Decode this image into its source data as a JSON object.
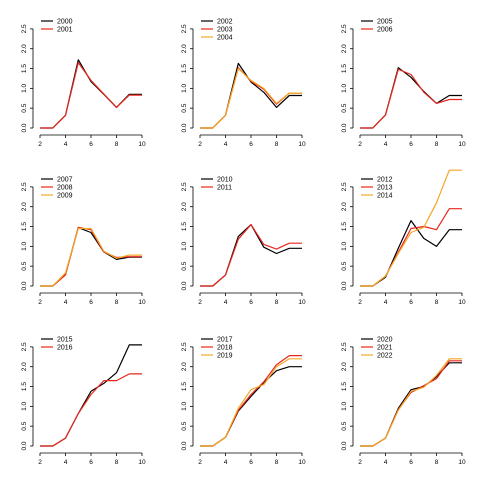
{
  "colors": {
    "black": "#000000",
    "red": "#e8281e",
    "orange": "#f5a623",
    "axis": "#000000"
  },
  "chart_data": [
    {
      "type": "line",
      "x": [
        2,
        3,
        4,
        5,
        6,
        7,
        8,
        9,
        10
      ],
      "xticks": [
        2,
        4,
        6,
        8,
        10
      ],
      "yticks": [
        "0.0",
        "0.5",
        "1.0",
        "1.5",
        "2.0",
        "2.5"
      ],
      "xlim": [
        2,
        10
      ],
      "ylim": [
        0,
        2.8
      ],
      "legend_position": "top-left",
      "series": [
        {
          "name": "2000",
          "color": "#000000",
          "values": [
            0.0,
            0.0,
            0.32,
            1.72,
            1.17,
            0.85,
            0.52,
            0.85,
            0.85
          ]
        },
        {
          "name": "2001",
          "color": "#e8281e",
          "values": [
            0.0,
            0.0,
            0.32,
            1.65,
            1.2,
            0.86,
            0.52,
            0.83,
            0.83
          ]
        }
      ]
    },
    {
      "type": "line",
      "x": [
        2,
        3,
        4,
        5,
        6,
        7,
        8,
        9,
        10
      ],
      "xticks": [
        2,
        4,
        6,
        8,
        10
      ],
      "yticks": [
        "0.0",
        "0.5",
        "1.0",
        "1.5",
        "2.0",
        "2.5"
      ],
      "xlim": [
        2,
        10
      ],
      "ylim": [
        0,
        2.8
      ],
      "legend_position": "top-left",
      "series": [
        {
          "name": "2002",
          "color": "#000000",
          "values": [
            0.0,
            0.0,
            0.32,
            1.63,
            1.16,
            0.9,
            0.52,
            0.82,
            0.82
          ]
        },
        {
          "name": "2003",
          "color": "#e8281e",
          "values": [
            0.0,
            0.0,
            0.32,
            1.52,
            1.18,
            0.98,
            0.6,
            0.88,
            0.88
          ]
        },
        {
          "name": "2004",
          "color": "#f5a623",
          "values": [
            0.0,
            0.0,
            0.32,
            1.5,
            1.2,
            1.0,
            0.62,
            0.88,
            0.88
          ]
        }
      ]
    },
    {
      "type": "line",
      "x": [
        2,
        3,
        4,
        5,
        6,
        7,
        8,
        9,
        10
      ],
      "xticks": [
        2,
        4,
        6,
        8,
        10
      ],
      "yticks": [
        "0.0",
        "0.5",
        "1.0",
        "1.5",
        "2.0",
        "2.5"
      ],
      "xlim": [
        2,
        10
      ],
      "ylim": [
        0,
        2.8
      ],
      "legend_position": "top-left",
      "series": [
        {
          "name": "2005",
          "color": "#000000",
          "values": [
            0.0,
            0.0,
            0.33,
            1.52,
            1.28,
            0.92,
            0.62,
            0.82,
            0.82
          ]
        },
        {
          "name": "2006",
          "color": "#e8281e",
          "values": [
            0.0,
            0.0,
            0.33,
            1.48,
            1.35,
            0.9,
            0.62,
            0.72,
            0.72
          ]
        }
      ]
    },
    {
      "type": "line",
      "x": [
        2,
        3,
        4,
        5,
        6,
        7,
        8,
        9,
        10
      ],
      "xticks": [
        2,
        4,
        6,
        8,
        10
      ],
      "yticks": [
        "0.0",
        "0.5",
        "1.0",
        "1.5",
        "2.0",
        "2.5"
      ],
      "xlim": [
        2,
        10
      ],
      "ylim": [
        0,
        2.8
      ],
      "legend_position": "top-left",
      "series": [
        {
          "name": "2007",
          "color": "#000000",
          "values": [
            0.0,
            0.0,
            0.3,
            1.47,
            1.35,
            0.86,
            0.67,
            0.73,
            0.73
          ]
        },
        {
          "name": "2008",
          "color": "#e8281e",
          "values": [
            0.0,
            0.0,
            0.28,
            1.48,
            1.42,
            0.86,
            0.72,
            0.74,
            0.74
          ]
        },
        {
          "name": "2009",
          "color": "#f5a623",
          "values": [
            0.0,
            0.0,
            0.33,
            1.45,
            1.45,
            0.88,
            0.7,
            0.78,
            0.78
          ]
        }
      ]
    },
    {
      "type": "line",
      "x": [
        2,
        3,
        4,
        5,
        6,
        7,
        8,
        9,
        10
      ],
      "xticks": [
        2,
        4,
        6,
        8,
        10
      ],
      "yticks": [
        "0.0",
        "0.5",
        "1.0",
        "1.5",
        "2.0",
        "2.5"
      ],
      "xlim": [
        2,
        10
      ],
      "ylim": [
        0,
        2.8
      ],
      "legend_position": "top-left",
      "series": [
        {
          "name": "2010",
          "color": "#000000",
          "values": [
            0.0,
            0.0,
            0.28,
            1.25,
            1.55,
            0.98,
            0.82,
            0.95,
            0.95
          ]
        },
        {
          "name": "2011",
          "color": "#e8281e",
          "values": [
            0.0,
            0.0,
            0.28,
            1.18,
            1.55,
            1.05,
            0.93,
            1.08,
            1.08
          ]
        }
      ]
    },
    {
      "type": "line",
      "x": [
        2,
        3,
        4,
        5,
        6,
        7,
        8,
        9,
        10
      ],
      "xticks": [
        2,
        4,
        6,
        8,
        10
      ],
      "yticks": [
        "0.0",
        "0.5",
        "1.0",
        "1.5",
        "2.0",
        "2.5"
      ],
      "xlim": [
        2,
        10
      ],
      "ylim": [
        0,
        2.8
      ],
      "legend_position": "top-left",
      "series": [
        {
          "name": "2012",
          "color": "#000000",
          "values": [
            0.0,
            0.0,
            0.22,
            0.95,
            1.65,
            1.2,
            1.0,
            1.42,
            1.42
          ]
        },
        {
          "name": "2013",
          "color": "#e8281e",
          "values": [
            0.0,
            0.0,
            0.25,
            0.85,
            1.45,
            1.5,
            1.42,
            1.95,
            1.95
          ]
        },
        {
          "name": "2014",
          "color": "#f5a623",
          "values": [
            0.0,
            0.0,
            0.25,
            0.82,
            1.35,
            1.48,
            2.1,
            2.92,
            2.92
          ]
        }
      ]
    },
    {
      "type": "line",
      "x": [
        2,
        3,
        4,
        5,
        6,
        7,
        8,
        9,
        10
      ],
      "xticks": [
        2,
        4,
        6,
        8,
        10
      ],
      "yticks": [
        "0.0",
        "0.5",
        "1.0",
        "1.5",
        "2.0",
        "2.5"
      ],
      "xlim": [
        2,
        10
      ],
      "ylim": [
        0,
        2.8
      ],
      "legend_position": "top-left",
      "series": [
        {
          "name": "2015",
          "color": "#000000",
          "values": [
            0.0,
            0.0,
            0.2,
            0.82,
            1.38,
            1.58,
            1.85,
            2.55,
            2.55
          ]
        },
        {
          "name": "2016",
          "color": "#e8281e",
          "values": [
            0.0,
            0.0,
            0.2,
            0.82,
            1.3,
            1.65,
            1.65,
            1.82,
            1.82
          ]
        }
      ]
    },
    {
      "type": "line",
      "x": [
        2,
        3,
        4,
        5,
        6,
        7,
        8,
        9,
        10
      ],
      "xticks": [
        2,
        4,
        6,
        8,
        10
      ],
      "yticks": [
        "0.0",
        "0.5",
        "1.0",
        "1.5",
        "2.0",
        "2.5"
      ],
      "xlim": [
        2,
        10
      ],
      "ylim": [
        0,
        2.8
      ],
      "legend_position": "top-left",
      "series": [
        {
          "name": "2017",
          "color": "#000000",
          "values": [
            0.0,
            0.0,
            0.22,
            0.88,
            1.25,
            1.6,
            1.9,
            2.0,
            2.0
          ]
        },
        {
          "name": "2018",
          "color": "#e8281e",
          "values": [
            0.0,
            0.0,
            0.22,
            0.9,
            1.3,
            1.62,
            2.05,
            2.28,
            2.28
          ]
        },
        {
          "name": "2019",
          "color": "#f5a623",
          "values": [
            0.0,
            0.0,
            0.22,
            0.95,
            1.42,
            1.55,
            2.0,
            2.2,
            2.2
          ]
        }
      ]
    },
    {
      "type": "line",
      "x": [
        2,
        3,
        4,
        5,
        6,
        7,
        8,
        9,
        10
      ],
      "xticks": [
        2,
        4,
        6,
        8,
        10
      ],
      "yticks": [
        "0.0",
        "0.5",
        "1.0",
        "1.5",
        "2.0",
        "2.5"
      ],
      "xlim": [
        2,
        10
      ],
      "ylim": [
        0,
        2.8
      ],
      "legend_position": "top-left",
      "series": [
        {
          "name": "2020",
          "color": "#000000",
          "values": [
            0.0,
            0.0,
            0.2,
            0.95,
            1.42,
            1.5,
            1.75,
            2.1,
            2.1
          ]
        },
        {
          "name": "2021",
          "color": "#e8281e",
          "values": [
            0.0,
            0.0,
            0.2,
            0.92,
            1.35,
            1.52,
            1.7,
            2.15,
            2.15
          ]
        },
        {
          "name": "2022",
          "color": "#f5a623",
          "values": [
            0.0,
            0.0,
            0.2,
            0.9,
            1.38,
            1.48,
            1.78,
            2.2,
            2.2
          ]
        }
      ]
    }
  ]
}
